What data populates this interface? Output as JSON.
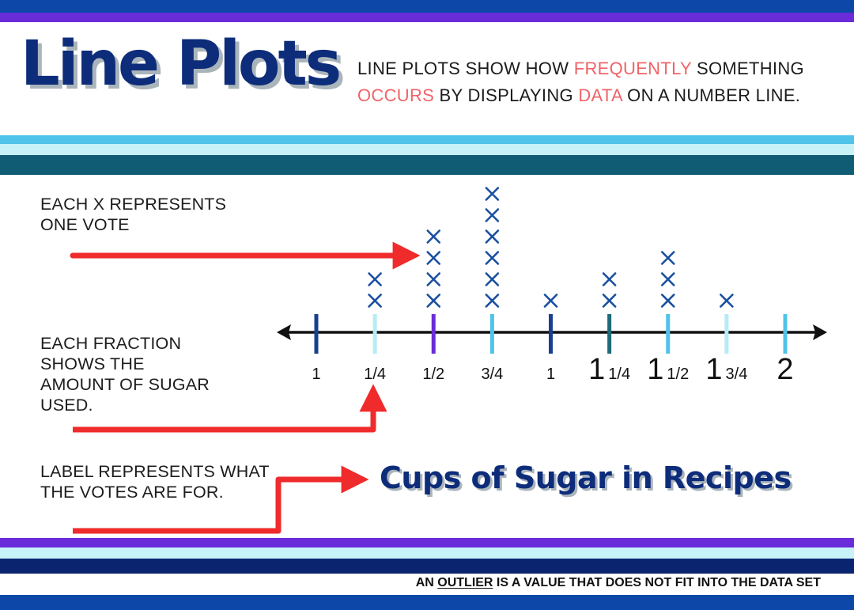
{
  "title": "Line Plots",
  "intro": {
    "segments": [
      {
        "text": "LINE PLOTS SHOW HOW ",
        "highlight": false
      },
      {
        "text": "FREQUENTLY",
        "highlight": true
      },
      {
        "text": " SOMETHING ",
        "highlight": false
      },
      {
        "text": "OCCURS",
        "highlight": true
      },
      {
        "text": " BY DISPLAYING ",
        "highlight": false
      },
      {
        "text": "DATA",
        "highlight": true
      },
      {
        "text": " ON A NUMBER LINE.",
        "highlight": false
      }
    ]
  },
  "callouts": {
    "x_meaning": "EACH X REPRESENTS\nONE VOTE",
    "fraction_meaning": "EACH FRACTION\nSHOWS THE\nAMOUNT OF SUGAR\nUSED.",
    "label_meaning": "LABEL REPRESENTS WHAT\nTHE VOTES ARE FOR."
  },
  "plot_label": "Cups of Sugar in Recipes",
  "footer": {
    "before": "AN ",
    "underlined": "OUTLIER",
    "after": " IS A VALUE THAT DOES NOT FIT INTO THE DATA SET"
  },
  "line_plot": {
    "mark_symbol": "×",
    "ticks": [
      {
        "whole": "",
        "fraction": "1",
        "count": 0,
        "color": "#1a3f8f"
      },
      {
        "whole": "",
        "fraction": "1/4",
        "count": 2,
        "color": "#b5ecf5"
      },
      {
        "whole": "",
        "fraction": "1/2",
        "count": 4,
        "color": "#6a2bd9"
      },
      {
        "whole": "",
        "fraction": "3/4",
        "count": 6,
        "color": "#4fc3e8"
      },
      {
        "whole": "",
        "fraction": "1",
        "count": 1,
        "color": "#1a3f8f"
      },
      {
        "whole": "1",
        "fraction": "1/4",
        "count": 2,
        "color": "#1f6a78"
      },
      {
        "whole": "1",
        "fraction": "1/2",
        "count": 3,
        "color": "#4fc3e8"
      },
      {
        "whole": "1",
        "fraction": "3/4",
        "count": 1,
        "color": "#b5ecf5"
      },
      {
        "whole": "2",
        "fraction": "",
        "count": 0,
        "color": "#4fc3e8"
      }
    ]
  },
  "colors": {
    "title": "#0d2c7a",
    "highlight": "#f06368",
    "arrow": "#ef2b2b",
    "mark": "#1a4fa0",
    "axis": "#111111",
    "stripe_dark_navy": "#0b2470",
    "stripe_blue": "#0d47a8",
    "stripe_purple": "#6a2bd9",
    "stripe_sky": "#4fc3e8",
    "stripe_pale": "#c7f2f8",
    "stripe_teal": "#115c75"
  }
}
